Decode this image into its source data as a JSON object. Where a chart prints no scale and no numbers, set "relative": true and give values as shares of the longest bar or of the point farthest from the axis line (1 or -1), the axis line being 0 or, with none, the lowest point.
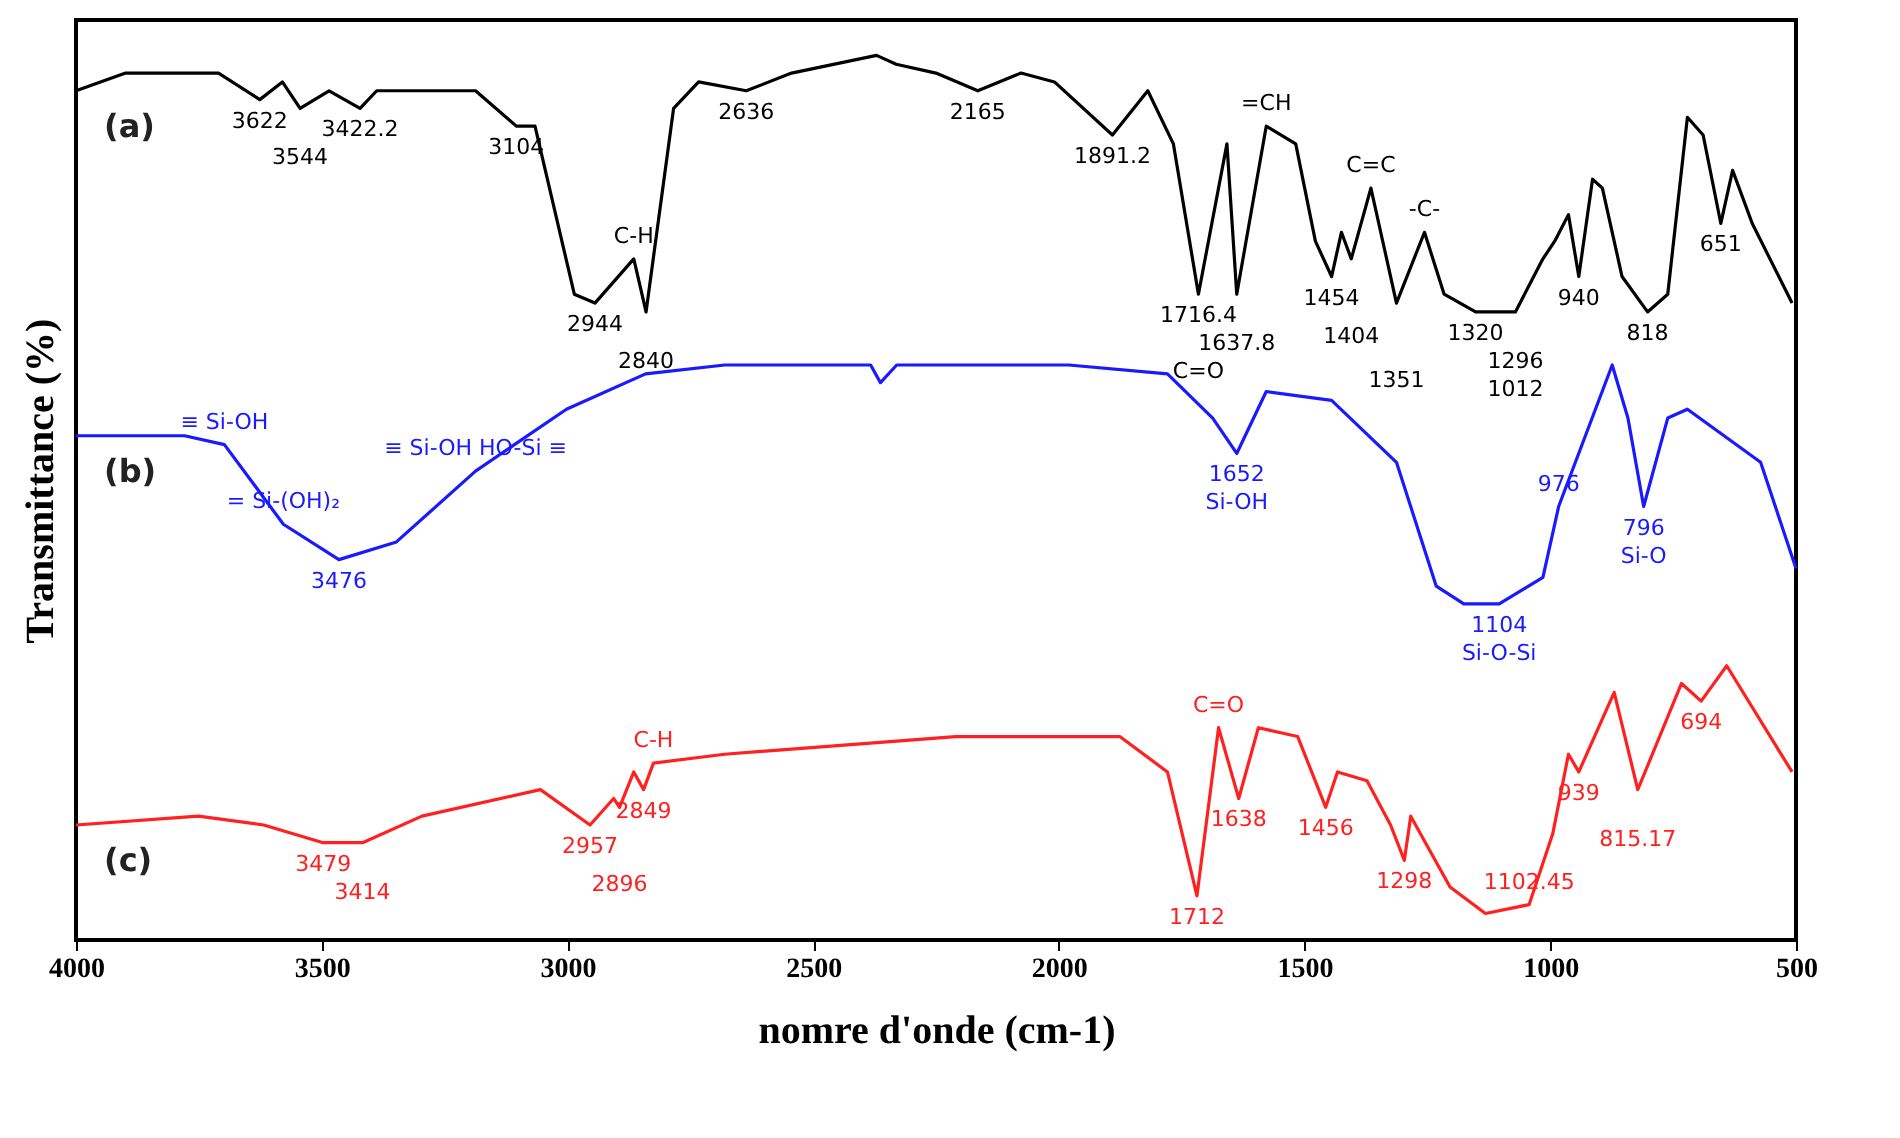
{
  "chart_data": {
    "type": "line",
    "relative": true,
    "xlabel": "nomre d'onde (cm-1)",
    "ylabel": "Transmittance (%)",
    "xlim": [
      4000,
      500
    ],
    "xticks": [
      4000,
      3500,
      3000,
      2500,
      2000,
      1500,
      1000,
      500
    ],
    "legend": false,
    "line_style": "solid",
    "series": [
      {
        "name": "(a)",
        "color": "#000000",
        "x": [
          4000,
          3899,
          3710,
          3626,
          3580,
          3544,
          3485,
          3422,
          3388,
          3187,
          3104,
          3066,
          2986,
          2944,
          2865,
          2840,
          2784,
          2733,
          2636,
          2544,
          2371,
          2331,
          2250,
          2165,
          2077,
          2009,
          1891,
          1819,
          1767,
          1716,
          1658,
          1638,
          1578,
          1518,
          1478,
          1445,
          1425,
          1405,
          1365,
          1337,
          1313,
          1256,
          1216,
          1152,
          1071,
          1015,
          991,
          963,
          942,
          914,
          894,
          854,
          802,
          761,
          721,
          689,
          653,
          629,
          589,
          508
        ],
        "values": [
          0.96,
          0.98,
          0.98,
          0.95,
          0.97,
          0.94,
          0.96,
          0.94,
          0.96,
          0.96,
          0.92,
          0.92,
          0.73,
          0.72,
          0.77,
          0.71,
          0.94,
          0.97,
          0.96,
          0.98,
          1.0,
          0.99,
          0.98,
          0.96,
          0.98,
          0.97,
          0.91,
          0.96,
          0.9,
          0.73,
          0.9,
          0.73,
          0.92,
          0.9,
          0.79,
          0.75,
          0.8,
          0.77,
          0.85,
          0.78,
          0.72,
          0.8,
          0.73,
          0.71,
          0.71,
          0.77,
          0.79,
          0.82,
          0.75,
          0.86,
          0.85,
          0.75,
          0.71,
          0.73,
          0.93,
          0.91,
          0.81,
          0.87,
          0.81,
          0.72
        ]
      },
      {
        "name": "(b)",
        "color": "#1a1aff",
        "x": [
          4000,
          3779,
          3698,
          3578,
          3465,
          3348,
          3187,
          3002,
          2841,
          2680,
          2383,
          2363,
          2330,
          2210,
          1980,
          1779,
          1687,
          1638,
          1578,
          1445,
          1313,
          1232,
          1176,
          1104,
          1015,
          983,
          874,
          842,
          810,
          761,
          721,
          572,
          500
        ],
        "values": [
          0.57,
          0.57,
          0.56,
          0.47,
          0.43,
          0.45,
          0.53,
          0.6,
          0.64,
          0.65,
          0.65,
          0.63,
          0.65,
          0.65,
          0.65,
          0.64,
          0.59,
          0.55,
          0.62,
          0.61,
          0.54,
          0.4,
          0.38,
          0.38,
          0.41,
          0.49,
          0.65,
          0.59,
          0.49,
          0.59,
          0.6,
          0.54,
          0.42
        ]
      },
      {
        "name": "(c)",
        "color": "#ff2020",
        "x": [
          4000,
          3751,
          3618,
          3497,
          3417,
          3296,
          3055,
          2954,
          2906,
          2894,
          2865,
          2845,
          2825,
          2680,
          2210,
          1876,
          1779,
          1719,
          1675,
          1634,
          1594,
          1514,
          1457,
          1433,
          1373,
          1325,
          1297,
          1284,
          1204,
          1132,
          1043,
          995,
          963,
          942,
          870,
          822,
          733,
          693,
          641,
          508
        ],
        "values": [
          0.13,
          0.14,
          0.13,
          0.11,
          0.11,
          0.14,
          0.17,
          0.13,
          0.16,
          0.15,
          0.19,
          0.17,
          0.2,
          0.21,
          0.23,
          0.23,
          0.19,
          0.05,
          0.24,
          0.16,
          0.24,
          0.23,
          0.15,
          0.19,
          0.18,
          0.13,
          0.09,
          0.14,
          0.06,
          0.03,
          0.04,
          0.12,
          0.21,
          0.19,
          0.28,
          0.17,
          0.29,
          0.27,
          0.31,
          0.19
        ]
      }
    ],
    "annotations": [
      {
        "text": "3622",
        "x": 3626,
        "y": 0.95
      },
      {
        "text": "3544",
        "x": 3544,
        "y": 0.94
      },
      {
        "text": "3422.2",
        "x": 3422,
        "y": 0.94
      },
      {
        "text": "3104",
        "x": 3104,
        "y": 0.92
      },
      {
        "text": "2944",
        "x": 2944,
        "y": 0.72
      },
      {
        "text": "2840",
        "x": 2840,
        "y": 0.71
      },
      {
        "text": "2636",
        "x": 2636,
        "y": 0.96
      },
      {
        "text": "2165",
        "x": 2165,
        "y": 0.96
      },
      {
        "text": "1891.2",
        "x": 1891,
        "y": 0.91
      },
      {
        "text": "1716.4",
        "x": 1716,
        "y": 0.73
      },
      {
        "text": "1637.8",
        "x": 1638,
        "y": 0.73
      },
      {
        "text": "1454",
        "x": 1445,
        "y": 0.75
      },
      {
        "text": "1404",
        "x": 1405,
        "y": 0.77
      },
      {
        "text": "1351",
        "x": 1313,
        "y": 0.72
      },
      {
        "text": "1320",
        "x": 1152,
        "y": 0.71
      },
      {
        "text": "1296",
        "x": 1071,
        "y": 0.71
      },
      {
        "text": "1012",
        "x": 1071,
        "y": 0.71
      },
      {
        "text": "940",
        "x": 942,
        "y": 0.75
      },
      {
        "text": "818",
        "x": 802,
        "y": 0.71
      },
      {
        "text": "651",
        "x": 653,
        "y": 0.81
      },
      {
        "text": "C-H",
        "x": 2865,
        "y": 0.77
      },
      {
        "text": "=CH",
        "x": 1578,
        "y": 0.92
      },
      {
        "text": "C=C",
        "x": 1365,
        "y": 0.85
      },
      {
        "text": "-C-",
        "x": 1256,
        "y": 0.8
      },
      {
        "text": "C=O",
        "x": 1716,
        "y": 0.73
      },
      {
        "text": "≡ Si-OH",
        "x": 3698,
        "y": 0.56
      },
      {
        "text": "≡ Si-OH HO-Si ≡",
        "x": 3187,
        "y": 0.53
      },
      {
        "text": "= Si-(OH)₂",
        "x": 3578,
        "y": 0.47
      },
      {
        "text": "3476",
        "x": 3465,
        "y": 0.43
      },
      {
        "text": "1652",
        "x": 1638,
        "y": 0.55
      },
      {
        "text": "Si-OH",
        "x": 1638,
        "y": 0.55
      },
      {
        "text": "1104",
        "x": 1104,
        "y": 0.38
      },
      {
        "text": "Si-O-Si",
        "x": 1104,
        "y": 0.38
      },
      {
        "text": "976",
        "x": 983,
        "y": 0.49
      },
      {
        "text": "796",
        "x": 810,
        "y": 0.49
      },
      {
        "text": "Si-O",
        "x": 810,
        "y": 0.49
      },
      {
        "text": "C-H",
        "x": 2825,
        "y": 0.2
      },
      {
        "text": "3479",
        "x": 3497,
        "y": 0.11
      },
      {
        "text": "3414",
        "x": 3417,
        "y": 0.11
      },
      {
        "text": "2957",
        "x": 2954,
        "y": 0.13
      },
      {
        "text": "2896",
        "x": 2894,
        "y": 0.15
      },
      {
        "text": "2849",
        "x": 2845,
        "y": 0.17
      },
      {
        "text": "C=O",
        "x": 1675,
        "y": 0.24
      },
      {
        "text": "1712",
        "x": 1719,
        "y": 0.05
      },
      {
        "text": "1638",
        "x": 1634,
        "y": 0.16
      },
      {
        "text": "1456",
        "x": 1457,
        "y": 0.15
      },
      {
        "text": "1298",
        "x": 1297,
        "y": 0.09
      },
      {
        "text": "1102.45",
        "x": 1043,
        "y": 0.04
      },
      {
        "text": "939",
        "x": 942,
        "y": 0.19
      },
      {
        "text": "815.17",
        "x": 822,
        "y": 0.17
      },
      {
        "text": "694",
        "x": 693,
        "y": 0.27
      }
    ]
  }
}
